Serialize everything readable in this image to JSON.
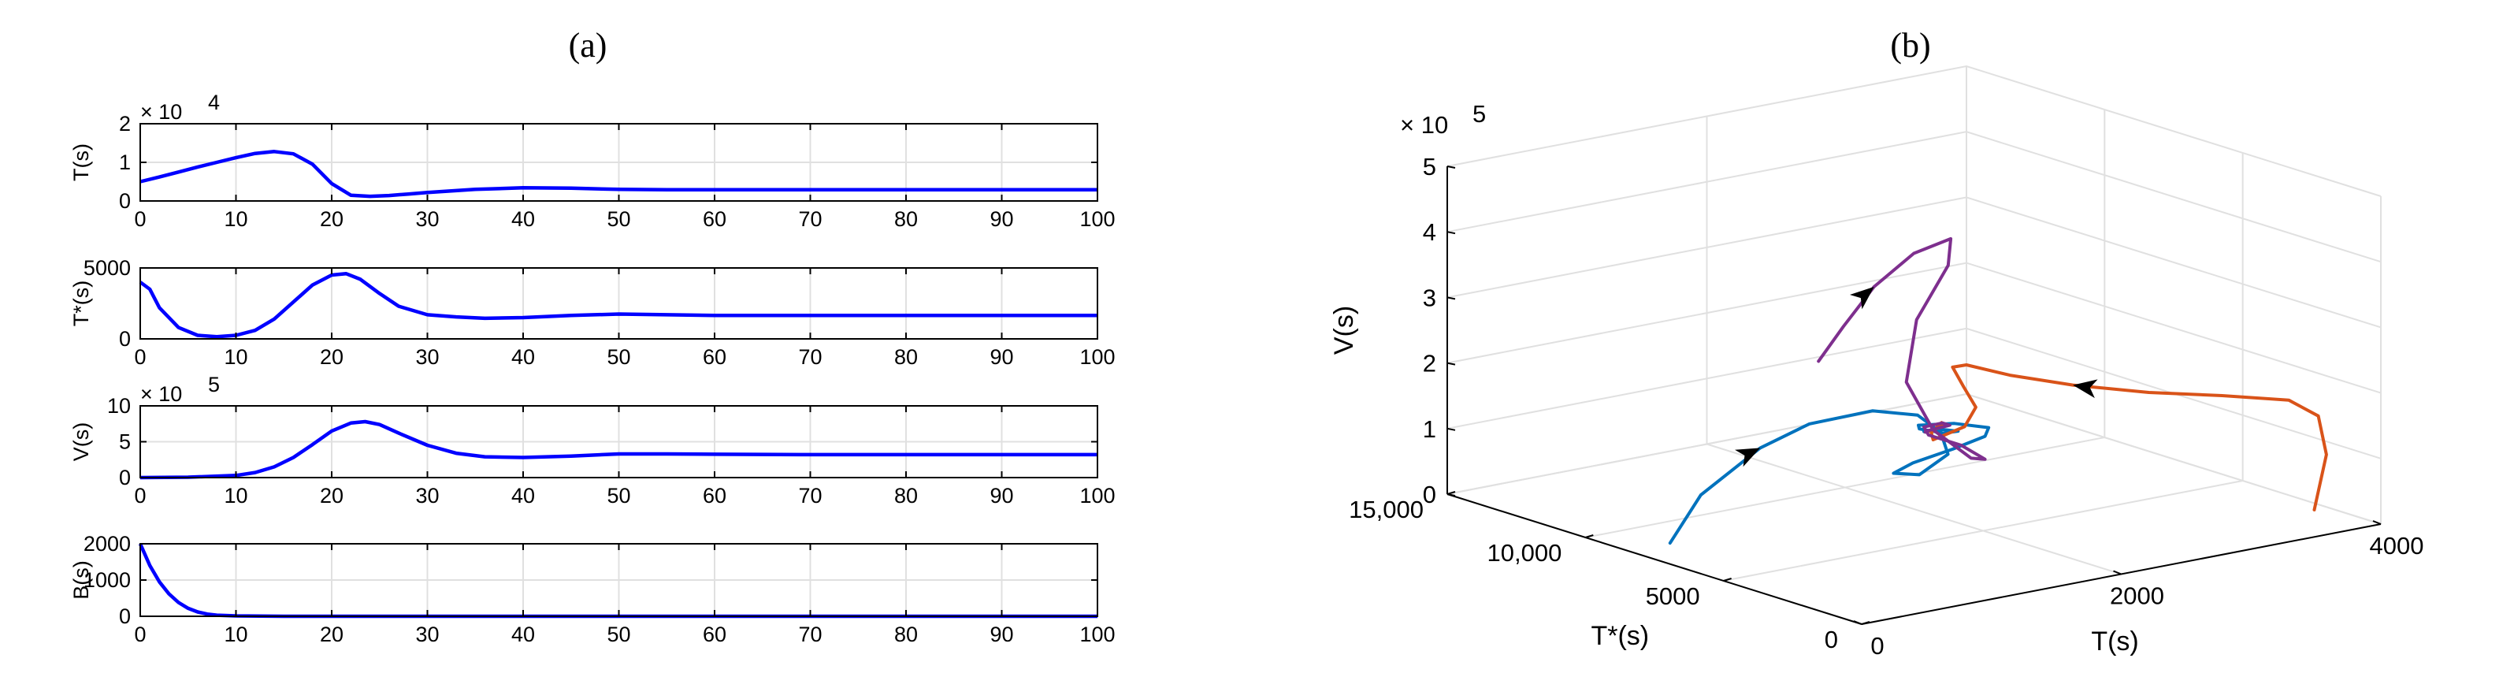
{
  "figure": {
    "label_a": "(a)",
    "label_b": "(b)"
  },
  "colors": {
    "series_a": "#0000ff",
    "blue": "#0072bd",
    "orange": "#d95319",
    "purple": "#7e2f8e",
    "grid": "#e0e0e0"
  },
  "chart_data": [
    {
      "type": "line",
      "panel": "a1",
      "ylabel": "T(s)",
      "exponent": "× 10",
      "exponent_power": "4",
      "xlim": [
        0,
        100
      ],
      "ylim": [
        0,
        2
      ],
      "x_ticks": [
        "0",
        "10",
        "20",
        "30",
        "40",
        "50",
        "60",
        "70",
        "80",
        "90",
        "100"
      ],
      "y_ticks": [
        "0",
        "1",
        "2"
      ],
      "grid": true,
      "x": [
        0,
        2,
        4,
        6,
        8,
        10,
        12,
        14,
        16,
        18,
        20,
        22,
        24,
        26,
        28,
        30,
        35,
        40,
        45,
        50,
        55,
        60,
        70,
        80,
        90,
        100
      ],
      "y": [
        0.5,
        0.62,
        0.75,
        0.88,
        1.0,
        1.12,
        1.23,
        1.28,
        1.22,
        0.95,
        0.45,
        0.15,
        0.12,
        0.14,
        0.18,
        0.22,
        0.3,
        0.34,
        0.33,
        0.3,
        0.29,
        0.29,
        0.29,
        0.29,
        0.29,
        0.29
      ]
    },
    {
      "type": "line",
      "panel": "a2",
      "ylabel": "T*(s)",
      "xlim": [
        0,
        100
      ],
      "ylim": [
        0,
        5000
      ],
      "x_ticks": [
        "0",
        "10",
        "20",
        "30",
        "40",
        "50",
        "60",
        "70",
        "80",
        "90",
        "100"
      ],
      "y_ticks": [
        "0",
        "5000"
      ],
      "grid": true,
      "x": [
        0,
        1,
        2,
        4,
        6,
        8,
        10,
        12,
        14,
        16,
        18,
        20,
        21.5,
        23,
        25,
        27,
        30,
        33,
        36,
        40,
        45,
        50,
        55,
        60,
        70,
        80,
        90,
        100
      ],
      "y": [
        4000,
        3500,
        2200,
        800,
        250,
        150,
        250,
        600,
        1400,
        2600,
        3800,
        4500,
        4600,
        4200,
        3200,
        2300,
        1700,
        1550,
        1450,
        1500,
        1650,
        1750,
        1700,
        1650,
        1650,
        1650,
        1650,
        1650
      ]
    },
    {
      "type": "line",
      "panel": "a3",
      "ylabel": "V(s)",
      "exponent": "× 10",
      "exponent_power": "5",
      "xlim": [
        0,
        100
      ],
      "ylim": [
        0,
        10
      ],
      "x_ticks": [
        "0",
        "10",
        "20",
        "30",
        "40",
        "50",
        "60",
        "70",
        "80",
        "90",
        "100"
      ],
      "y_ticks": [
        "0",
        "5",
        "10"
      ],
      "grid": true,
      "x": [
        0,
        5,
        10,
        12,
        14,
        16,
        18,
        20,
        22,
        23.5,
        25,
        27,
        30,
        33,
        36,
        40,
        45,
        50,
        55,
        60,
        70,
        80,
        90,
        100
      ],
      "y": [
        0,
        0.05,
        0.3,
        0.7,
        1.5,
        2.8,
        4.6,
        6.5,
        7.6,
        7.8,
        7.4,
        6.2,
        4.5,
        3.4,
        2.9,
        2.8,
        3.0,
        3.3,
        3.3,
        3.25,
        3.2,
        3.2,
        3.2,
        3.2
      ]
    },
    {
      "type": "line",
      "panel": "a4",
      "ylabel": "B(s)",
      "xlim": [
        0,
        100
      ],
      "ylim": [
        0,
        2000
      ],
      "x_ticks": [
        "0",
        "10",
        "20",
        "30",
        "40",
        "50",
        "60",
        "70",
        "80",
        "90",
        "100"
      ],
      "y_ticks": [
        "0",
        "1000",
        "2000"
      ],
      "grid": true,
      "x": [
        0,
        0.5,
        1,
        2,
        3,
        4,
        5,
        6,
        7,
        8,
        10,
        15,
        20,
        30,
        50,
        100
      ],
      "y": [
        2000,
        1700,
        1400,
        950,
        620,
        380,
        220,
        120,
        60,
        30,
        10,
        0,
        0,
        0,
        0,
        0
      ]
    },
    {
      "type": "line",
      "panel": "b",
      "projection": "3d",
      "xlabel": "T(s)",
      "ylabel": "T*(s)",
      "zlabel": "V(s)",
      "zexponent": "× 10",
      "zexponent_power": "5",
      "xlim": [
        0,
        4000
      ],
      "ylim": [
        0,
        15000
      ],
      "zlim": [
        0,
        5
      ],
      "x_ticks": [
        "0",
        "2000",
        "4000"
      ],
      "y_ticks": [
        "0",
        "5000",
        "10,000",
        "15,000"
      ],
      "z_ticks": [
        "0",
        "1",
        "2",
        "3",
        "4",
        "5"
      ],
      "grid": true,
      "series": [
        {
          "color": "blue",
          "T": [
            120,
            400,
            900,
            1300,
            1700,
            1900,
            1950,
            1900,
            1700,
            1650,
            1800,
            2000,
            2100,
            2000,
            1800,
            1650,
            1700,
            1800,
            1850,
            1750,
            1650,
            1650
          ],
          "Tstar": [
            7500,
            7700,
            7900,
            8000,
            7600,
            6900,
            6300,
            5800,
            5900,
            6600,
            6600,
            6100,
            5400,
            4800,
            5100,
            5700,
            5900,
            5500,
            5200,
            5300,
            5500,
            5450
          ],
          "V": [
            0.2,
            0.8,
            1.3,
            1.5,
            1.6,
            1.55,
            1.35,
            1.1,
            0.85,
            0.8,
            0.9,
            1.1,
            1.35,
            1.6,
            1.7,
            1.65,
            1.55,
            1.5,
            1.55,
            1.6,
            1.58,
            1.58
          ]
        },
        {
          "color": "orange",
          "T": [
            3700,
            3900,
            4050,
            3950,
            3500,
            3000,
            2500,
            2100,
            1850,
            1850,
            2000,
            2050,
            1900,
            1700,
            1750,
            1850,
            1800,
            1650
          ],
          "Tstar": [
            1000,
            1500,
            2500,
            3100,
            3400,
            3700,
            4100,
            4500,
            4900,
            5400,
            5700,
            5500,
            5200,
            5400,
            5700,
            5800,
            5500,
            5450
          ],
          "V": [
            0.2,
            0.9,
            1.3,
            1.5,
            1.7,
            1.9,
            2.15,
            2.4,
            2.6,
            2.5,
            2.1,
            1.8,
            1.6,
            1.45,
            1.5,
            1.6,
            1.6,
            1.58
          ]
        },
        {
          "color": "purple",
          "T": [
            1200,
            1350,
            1500,
            1700,
            1900,
            1880,
            1700,
            1600,
            1700,
            1950,
            2100,
            2000,
            1750,
            1650,
            1750,
            1850,
            1700,
            1650
          ],
          "Tstar": [
            7200,
            7000,
            6600,
            6100,
            5700,
            5700,
            6000,
            5900,
            5400,
            5200,
            5400,
            5800,
            5800,
            5500,
            5300,
            5500,
            5650,
            5450
          ],
          "V": [
            2.6,
            3.1,
            3.7,
            4.2,
            4.4,
            4.0,
            3.2,
            2.3,
            1.6,
            1.1,
            1.0,
            1.2,
            1.45,
            1.65,
            1.7,
            1.6,
            1.55,
            1.58
          ]
        }
      ],
      "arrows": [
        {
          "color": "blue",
          "T": 900,
          "Tstar": 7900,
          "V": 1.3
        },
        {
          "color": "orange",
          "T": 2500,
          "Tstar": 4100,
          "V": 2.15
        },
        {
          "color": "purple",
          "T": 1500,
          "Tstar": 6600,
          "V": 3.7
        }
      ]
    }
  ]
}
